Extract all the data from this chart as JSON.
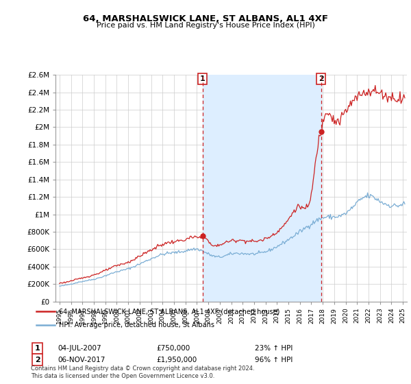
{
  "title": "64, MARSHALSWICK LANE, ST ALBANS, AL1 4XF",
  "subtitle": "Price paid vs. HM Land Registry's House Price Index (HPI)",
  "hpi_label": "HPI: Average price, detached house, St Albans",
  "property_label": "64, MARSHALSWICK LANE, ST ALBANS, AL1 4XF (detached house)",
  "annotation1_date": "04-JUL-2007",
  "annotation1_price": "£750,000",
  "annotation1_hpi": "23% ↑ HPI",
  "annotation2_date": "06-NOV-2017",
  "annotation2_price": "£1,950,000",
  "annotation2_hpi": "96% ↑ HPI",
  "sale1_year": 2007.5,
  "sale1_value": 750000,
  "sale2_year": 2017.85,
  "sale2_value": 1950000,
  "ylim_min": 0,
  "ylim_max": 2600000,
  "yticks": [
    0,
    200000,
    400000,
    600000,
    800000,
    1000000,
    1200000,
    1400000,
    1600000,
    1800000,
    2000000,
    2200000,
    2400000
  ],
  "ylabel_texts": [
    "£0",
    "£200K",
    "£400K",
    "£600K",
    "£800K",
    "£1M",
    "£1.2M",
    "£1.4M",
    "£1.6M",
    "£1.8M",
    "£2M",
    "£2.2M",
    "£2.4M"
  ],
  "ytick_top": 2600000,
  "ytick_top_label": "£2.6M",
  "hpi_color": "#7aadd4",
  "property_color": "#cc2222",
  "vline_color": "#cc2222",
  "shade_color": "#ddeeff",
  "background_color": "#ffffff",
  "footnote": "Contains HM Land Registry data © Crown copyright and database right 2024.\nThis data is licensed under the Open Government Licence v3.0.",
  "hpi_seed": 42,
  "prop_seed": 123
}
